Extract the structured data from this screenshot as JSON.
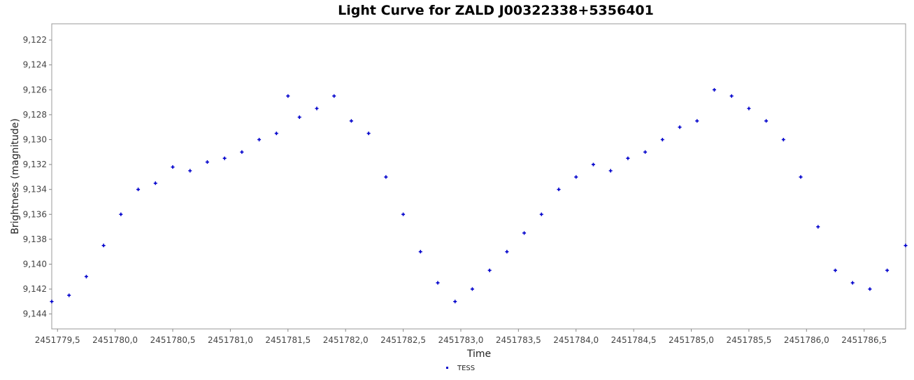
{
  "chart_data": {
    "type": "scatter",
    "title": "Light Curve for ZALD J00322338+5356401",
    "xlabel": "Time",
    "ylabel": "Brightness (magnitude)",
    "x_ticks": [
      "2451779,5",
      "2451780,0",
      "2451780,5",
      "2451781,0",
      "2451781,5",
      "2451782,0",
      "2451782,5",
      "2451783,0",
      "2451783,5",
      "2451784,0",
      "2451784,5",
      "2451785,0",
      "2451785,5",
      "2451786,0",
      "2451786,5"
    ],
    "y_ticks": [
      "9,122",
      "9,124",
      "9,126",
      "9,128",
      "9,130",
      "9,132",
      "9,134",
      "9,136",
      "9,138",
      "9,140",
      "9,142",
      "9,144"
    ],
    "xlim": [
      2451779.45,
      2451786.86
    ],
    "ylim": [
      9.1207,
      9.1452
    ],
    "y_inverted": true,
    "grid": false,
    "legend_position": "bottom-center",
    "series_color": "#0000cc",
    "series": [
      {
        "name": "TESS",
        "x": [
          2451779.45,
          2451779.6,
          2451779.75,
          2451779.9,
          2451780.05,
          2451780.2,
          2451780.35,
          2451780.5,
          2451780.65,
          2451780.8,
          2451780.95,
          2451781.1,
          2451781.25,
          2451781.4,
          2451781.5,
          2451781.6,
          2451781.75,
          2451781.9,
          2451782.05,
          2451782.2,
          2451782.35,
          2451782.5,
          2451782.65,
          2451782.8,
          2451782.95,
          2451783.1,
          2451783.25,
          2451783.4,
          2451783.55,
          2451783.7,
          2451783.85,
          2451784.0,
          2451784.15,
          2451784.3,
          2451784.45,
          2451784.6,
          2451784.75,
          2451784.9,
          2451785.05,
          2451785.2,
          2451785.35,
          2451785.5,
          2451785.65,
          2451785.8,
          2451785.95,
          2451786.1,
          2451786.25,
          2451786.4,
          2451786.55,
          2451786.7,
          2451786.86
        ],
        "y": [
          9.143,
          9.1425,
          9.141,
          9.1385,
          9.136,
          9.134,
          9.1335,
          9.1322,
          9.1325,
          9.1318,
          9.1315,
          9.131,
          9.13,
          9.1295,
          9.1265,
          9.1282,
          9.1275,
          9.1265,
          9.1285,
          9.1295,
          9.133,
          9.136,
          9.139,
          9.1415,
          9.143,
          9.142,
          9.1405,
          9.139,
          9.1375,
          9.136,
          9.134,
          9.133,
          9.132,
          9.1325,
          9.1315,
          9.131,
          9.13,
          9.129,
          9.1285,
          9.126,
          9.1265,
          9.1275,
          9.1285,
          9.13,
          9.133,
          9.137,
          9.1405,
          9.1415,
          9.142,
          9.1405,
          9.1385
        ]
      }
    ]
  }
}
